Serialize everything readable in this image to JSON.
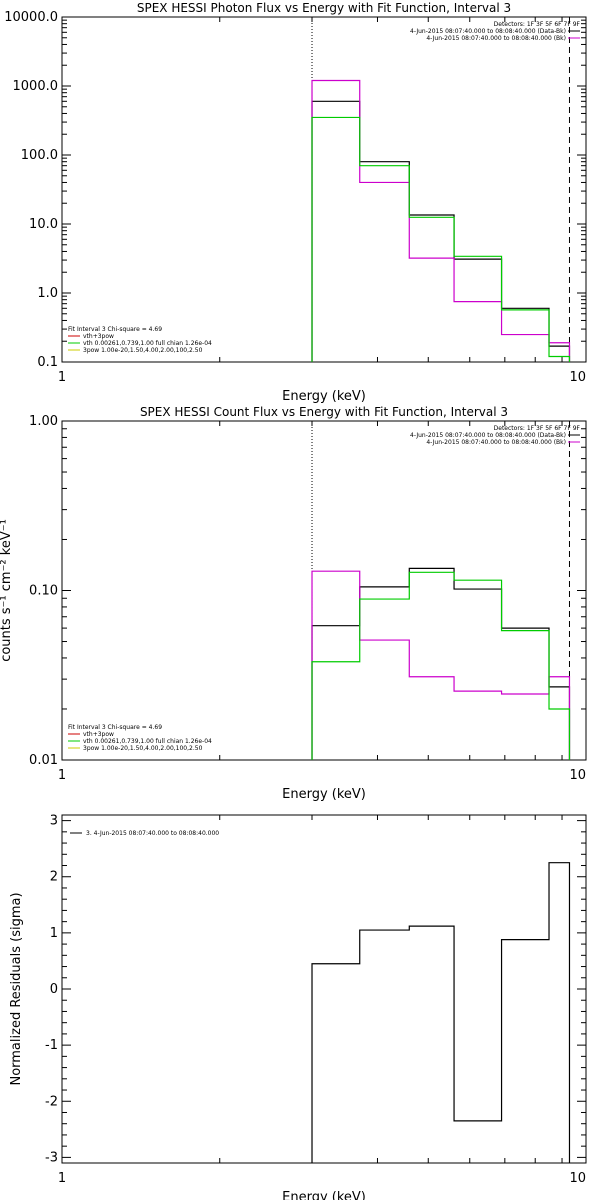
{
  "chart_data": [
    {
      "type": "step-line",
      "title": "SPEX HESSI Photon Flux vs Energy with Fit Function, Interval 3",
      "xlabel": "Energy (keV)",
      "ylabel": "",
      "xscale": "log",
      "yscale": "log",
      "xlim": [
        1,
        10
      ],
      "ylim": [
        0.1,
        10000
      ],
      "xtick_labels": [
        {
          "v": 1,
          "t": "1"
        },
        {
          "v": 10,
          "t": "10"
        }
      ],
      "ytick_labels": [
        {
          "v": 0.1,
          "t": "0.1"
        },
        {
          "v": 1,
          "t": "1.0"
        },
        {
          "v": 10,
          "t": "10.0"
        },
        {
          "v": 100,
          "t": "100.0"
        },
        {
          "v": 1000,
          "t": "1000.0"
        },
        {
          "v": 10000,
          "t": "10000.0"
        }
      ],
      "vlines": [
        {
          "x": 3.0,
          "style": "dotted"
        },
        {
          "x": 9.3,
          "style": "dashed"
        }
      ],
      "legend_top_right": [
        {
          "text": "Detectors: 1F 3F 5F 6F 7F 9F",
          "color": ""
        },
        {
          "text": "4-Jun-2015 08:07:40.000 to 08:08:40.000 (Data-Bk)",
          "color": "#000000"
        },
        {
          "text": "4-Jun-2015 08:07:40.000 to 08:08:40.000 (Bk)",
          "color": "#cc00cc"
        }
      ],
      "legend_bottom_left": [
        {
          "text": "Fit Interval 3   Chi-square = 4.69",
          "color": "#000000"
        },
        {
          "text": "vth+3pow",
          "color": "#cc0000"
        },
        {
          "text": "vth 0.00261,0.739,1.00  full chian 1.26e-04",
          "color": "#00cc00"
        },
        {
          "text": "3pow 1.00e-20,1.50,4.00,2.00,100,2.50",
          "color": "#cccc00"
        }
      ],
      "bin_edges": [
        3.0,
        3.7,
        4.6,
        5.6,
        6.9,
        8.5,
        9.3
      ],
      "series": [
        {
          "color": "#000000",
          "values": [
            600,
            80,
            13.5,
            3.1,
            0.6,
            0.17
          ]
        },
        {
          "color": "#cc00cc",
          "values": [
            1200,
            40,
            3.2,
            0.75,
            0.25,
            0.19
          ]
        },
        {
          "color": "#00cc00",
          "values": [
            350,
            70,
            12.5,
            3.4,
            0.57,
            0.12
          ]
        }
      ]
    },
    {
      "type": "step-line",
      "title": "SPEX HESSI Count Flux vs Energy with Fit Function, Interval 3",
      "xlabel": "Energy (keV)",
      "ylabel": "counts s⁻¹ cm⁻² keV⁻¹",
      "xscale": "log",
      "yscale": "log",
      "xlim": [
        1,
        10
      ],
      "ylim": [
        0.01,
        1
      ],
      "xtick_labels": [
        {
          "v": 1,
          "t": "1"
        },
        {
          "v": 10,
          "t": "10"
        }
      ],
      "ytick_labels": [
        {
          "v": 0.01,
          "t": "0.01"
        },
        {
          "v": 0.1,
          "t": "0.10"
        },
        {
          "v": 1,
          "t": "1.00"
        }
      ],
      "vlines": [
        {
          "x": 3.0,
          "style": "dotted"
        },
        {
          "x": 9.3,
          "style": "dashed"
        }
      ],
      "legend_top_right": [
        {
          "text": "Detectors: 1F 3F 5F 6F 7F 9F",
          "color": ""
        },
        {
          "text": "4-Jun-2015 08:07:40.000 to 08:08:40.000 (Data-Bk)",
          "color": "#000000"
        },
        {
          "text": "4-Jun-2015 08:07:40.000 to 08:08:40.000 (Bk)",
          "color": "#cc00cc"
        }
      ],
      "legend_bottom_left": [
        {
          "text": "Fit Interval 3   Chi-square = 4.69",
          "color": "#000000"
        },
        {
          "text": "vth+3pow",
          "color": "#cc0000"
        },
        {
          "text": "vth 0.00261,0.739,1.00  full chian 1.26e-04",
          "color": "#00cc00"
        },
        {
          "text": "3pow 1.00e-20,1.50,4.00,2.00,100,2.50",
          "color": "#cccc00"
        }
      ],
      "bin_edges": [
        3.0,
        3.7,
        4.6,
        5.6,
        6.9,
        8.5,
        9.3
      ],
      "series": [
        {
          "color": "#000000",
          "values": [
            0.062,
            0.105,
            0.135,
            0.102,
            0.06,
            0.027
          ]
        },
        {
          "color": "#cc00cc",
          "values": [
            0.13,
            0.051,
            0.031,
            0.0255,
            0.0245,
            0.031
          ]
        },
        {
          "color": "#00cc00",
          "values": [
            0.038,
            0.089,
            0.128,
            0.115,
            0.058,
            0.02
          ]
        }
      ]
    },
    {
      "type": "step-line",
      "title": "",
      "xlabel": "Energy (keV)",
      "ylabel": "Normalized Residuals (sigma)",
      "xscale": "log",
      "yscale": "linear",
      "xlim": [
        1,
        10
      ],
      "ylim": [
        -3.1,
        3.1
      ],
      "xtick_labels": [
        {
          "v": 1,
          "t": "1"
        },
        {
          "v": 10,
          "t": "10"
        }
      ],
      "ytick_labels": [
        {
          "v": -3,
          "t": "-3"
        },
        {
          "v": -2,
          "t": "-2"
        },
        {
          "v": -1,
          "t": "-1"
        },
        {
          "v": 0,
          "t": "0"
        },
        {
          "v": 1,
          "t": "1"
        },
        {
          "v": 2,
          "t": "2"
        },
        {
          "v": 3,
          "t": "3"
        }
      ],
      "vlines": [],
      "legend_top_right": [],
      "legend_top_left": [
        {
          "text": "3.  4-Jun-2015 08:07:40.000 to 08:08:40.000",
          "color": "#000000"
        }
      ],
      "legend_bottom_left": [],
      "bin_edges": [
        3.0,
        3.7,
        4.6,
        5.6,
        6.9,
        8.5,
        9.3
      ],
      "series": [
        {
          "color": "#000000",
          "values": [
            0.45,
            1.05,
            1.12,
            -2.35,
            0.88,
            2.25
          ]
        }
      ]
    }
  ]
}
